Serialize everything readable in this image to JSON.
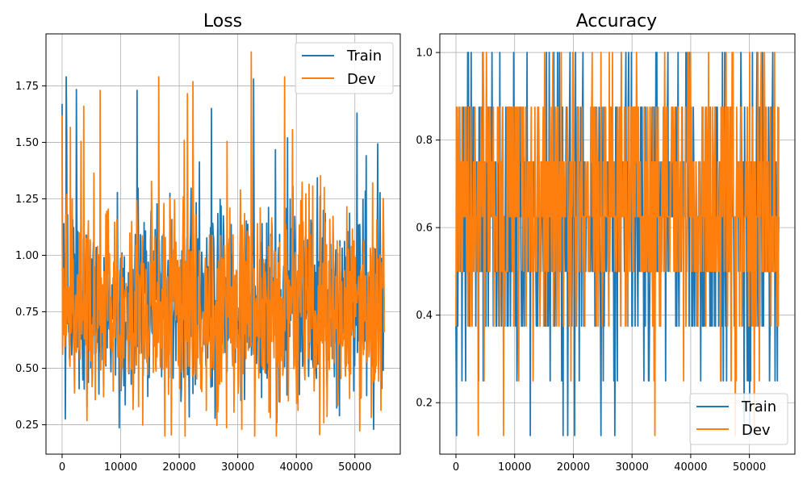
{
  "colors": {
    "train": "#1f77b4",
    "dev": "#ff7f0e",
    "grid": "#b0b0b0"
  },
  "chart_data": [
    {
      "type": "line",
      "title": "Loss",
      "xlabel": "",
      "ylabel": "",
      "xlim": [
        -2750,
        57750
      ],
      "ylim": [
        0.12,
        1.98
      ],
      "xticks": [
        0,
        10000,
        20000,
        30000,
        40000,
        50000
      ],
      "yticks": [
        0.25,
        0.5,
        0.75,
        1.0,
        1.25,
        1.5,
        1.75
      ],
      "xtick_labels": [
        "0",
        "10000",
        "20000",
        "30000",
        "40000",
        "50000"
      ],
      "ytick_labels": [
        "0.25",
        "0.50",
        "0.75",
        "1.00",
        "1.25",
        "1.50",
        "1.75"
      ],
      "grid": true,
      "legend_position": "top-right",
      "x_range": [
        0,
        55000
      ],
      "series": [
        {
          "name": "Train",
          "color_key": "train",
          "samples": 700,
          "base": 0.78,
          "spread": 0.2,
          "spike_prob": 0.08,
          "spike_size": 0.65,
          "lo": 0.23,
          "hi": 1.79,
          "seed": 11,
          "key_points": [
            [
              0,
              1.67
            ],
            [
              300,
              1.14
            ],
            [
              700,
              1.79
            ],
            [
              1000,
              0.86
            ],
            [
              12800,
              1.73
            ],
            [
              32700,
              1.78
            ],
            [
              25500,
              1.65
            ],
            [
              38500,
              1.52
            ],
            [
              53200,
              0.23
            ]
          ]
        },
        {
          "name": "Dev",
          "color_key": "dev",
          "samples": 700,
          "base": 0.76,
          "spread": 0.22,
          "spike_prob": 0.09,
          "spike_size": 0.7,
          "lo": 0.2,
          "hi": 1.9,
          "seed": 23,
          "key_points": [
            [
              0,
              1.62
            ],
            [
              400,
              0.85
            ],
            [
              3700,
              1.66
            ],
            [
              6500,
              1.73
            ],
            [
              16500,
              1.79
            ],
            [
              21000,
              0.2
            ],
            [
              32300,
              1.9
            ],
            [
              38000,
              1.79
            ],
            [
              55000,
              0.66
            ]
          ]
        }
      ]
    },
    {
      "type": "line",
      "title": "Accuracy",
      "xlabel": "",
      "ylabel": "",
      "xlim": [
        -2750,
        57750
      ],
      "ylim": [
        0.0825,
        1.0425
      ],
      "xticks": [
        0,
        10000,
        20000,
        30000,
        40000,
        50000
      ],
      "yticks": [
        0.2,
        0.4,
        0.6,
        0.8,
        1.0
      ],
      "xtick_labels": [
        "0",
        "10000",
        "20000",
        "30000",
        "40000",
        "50000"
      ],
      "ytick_labels": [
        "0.2",
        "0.4",
        "0.6",
        "0.8",
        "1.0"
      ],
      "grid": true,
      "legend_position": "bottom-right",
      "x_range": [
        0,
        55000
      ],
      "levels": [
        0.125,
        0.25,
        0.375,
        0.5,
        0.625,
        0.75,
        0.875,
        1.0
      ],
      "series": [
        {
          "name": "Train",
          "color_key": "train",
          "samples": 700,
          "weights": [
            0.005,
            0.03,
            0.12,
            0.2,
            0.26,
            0.2,
            0.14,
            0.045
          ],
          "seed": 5,
          "key_points": [
            [
              0,
              0.375
            ],
            [
              100,
              0.125
            ],
            [
              2000,
              1.0
            ],
            [
              27500,
              0.25
            ],
            [
              55000,
              0.625
            ]
          ]
        },
        {
          "name": "Dev",
          "color_key": "dev",
          "samples": 700,
          "weights": [
            0.004,
            0.02,
            0.08,
            0.2,
            0.26,
            0.24,
            0.16,
            0.036
          ],
          "seed": 9,
          "key_points": [
            [
              0,
              0.375
            ],
            [
              3800,
              0.125
            ],
            [
              33900,
              0.125
            ],
            [
              55000,
              0.875
            ]
          ]
        }
      ]
    }
  ]
}
